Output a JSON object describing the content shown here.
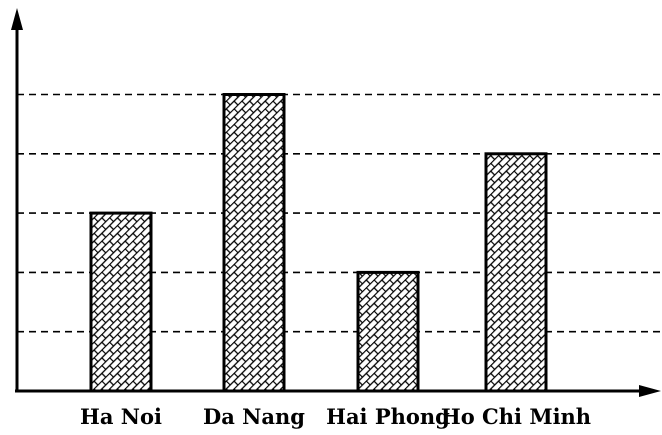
{
  "chart_data": {
    "type": "bar",
    "categories": [
      "Ha Noi",
      "Da Nang",
      "Hai Phong",
      "Ho Chi Minh"
    ],
    "values": [
      3,
      5,
      2,
      4
    ],
    "ylim": [
      0,
      5
    ],
    "grid": true,
    "gridline_values": [
      1,
      2,
      3,
      4,
      5
    ],
    "bar_fill_pattern": "brick-hatch",
    "colors": {
      "bar_stroke": "#000000",
      "pattern_line": "#000000",
      "background": "#ffffff"
    }
  }
}
